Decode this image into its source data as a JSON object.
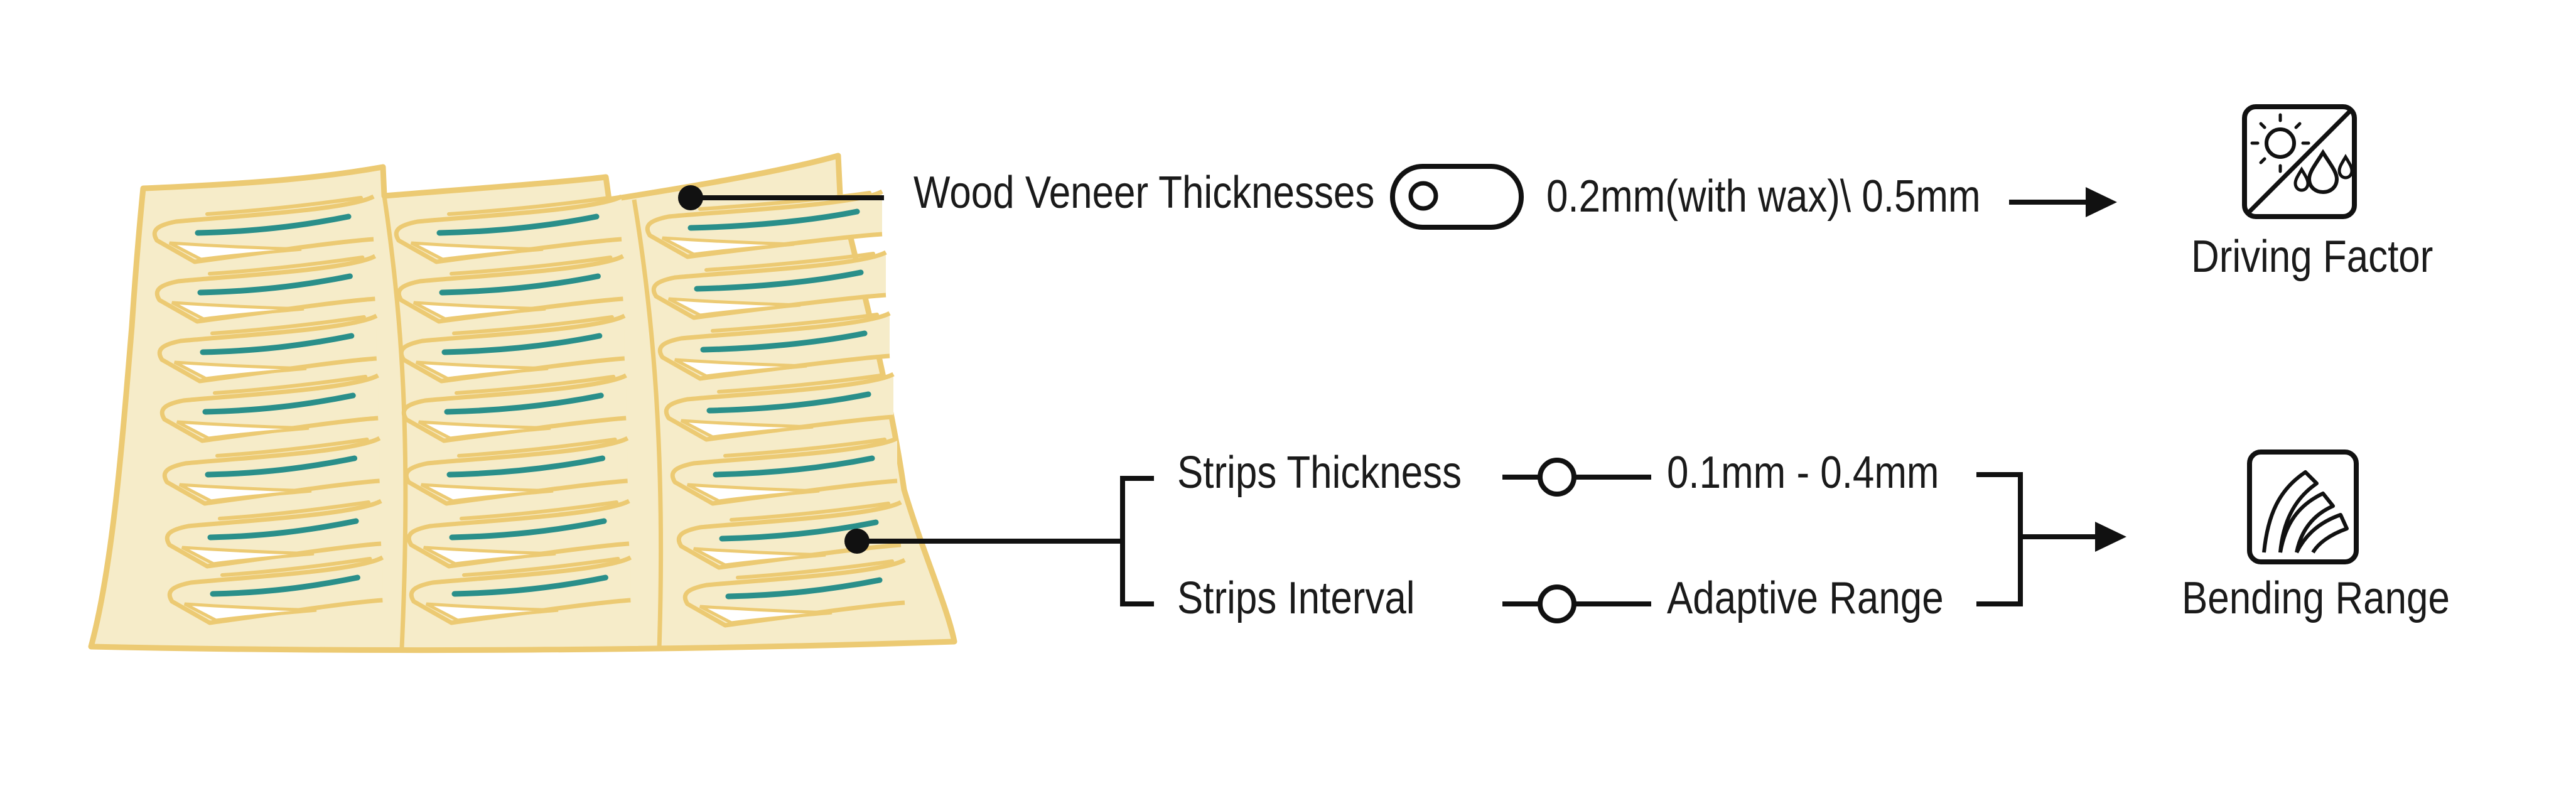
{
  "colors": {
    "veneer_fill": "#f6ecc9",
    "veneer_stroke": "#ecca73",
    "strip_accent": "#2a8f8a",
    "line": "#111111",
    "text": "#1a1a1a",
    "background": "#ffffff"
  },
  "veneer": {
    "thickness_label": "Wood Veneer Thicknesses",
    "thickness_value": "0.2mm(with wax)\\ 0.5mm",
    "toggle_icon": "toggle-switch-icon"
  },
  "strips": {
    "thickness_label": "Strips Thickness",
    "thickness_value": "0.1mm - 0.4mm",
    "interval_label": "Strips Interval",
    "interval_value": "Adaptive Range",
    "slider_icon": "slider-icon"
  },
  "outputs": {
    "driving_factor": {
      "label": "Driving Factor",
      "icon": "sun-rain-icon"
    },
    "bending_range": {
      "label": "Bending Range",
      "icon": "bending-layers-icon"
    }
  }
}
